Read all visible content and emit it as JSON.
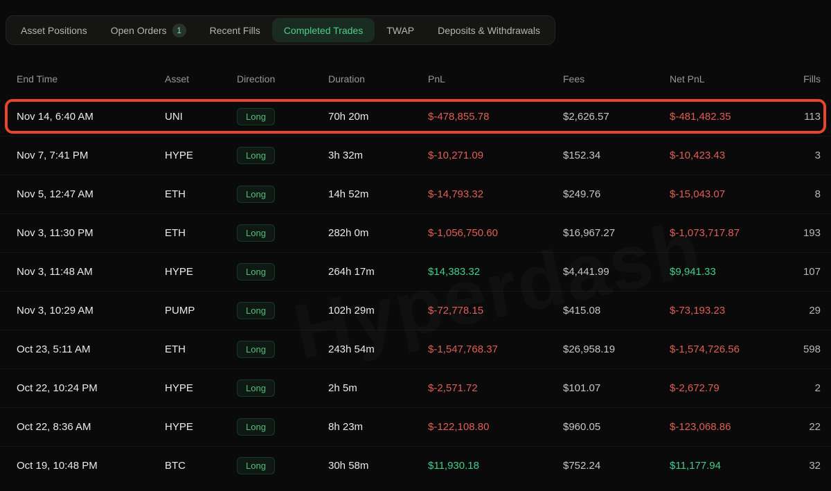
{
  "theme": {
    "background": "#0a0a0a",
    "accent_green": "#4dd08b",
    "profit_green": "#3ecf8c",
    "loss_red": "#e25d55",
    "neutral_text": "#c8c6c3",
    "highlight_border": "#e8452c",
    "long_badge_green": "#57bb7c"
  },
  "tabs": {
    "items": [
      {
        "label": "Asset Positions"
      },
      {
        "label": "Open Orders",
        "badge": "1"
      },
      {
        "label": "Recent Fills"
      },
      {
        "label": "Completed Trades",
        "active": true
      },
      {
        "label": "TWAP"
      },
      {
        "label": "Deposits & Withdrawals"
      }
    ]
  },
  "table": {
    "columns": [
      "End Time",
      "Asset",
      "Direction",
      "Duration",
      "PnL",
      "Fees",
      "Net PnL",
      "Fills"
    ],
    "rows": [
      {
        "end_time": "Nov 14, 6:40 AM",
        "asset": "UNI",
        "direction": "Long",
        "duration": "70h 20m",
        "pnl": "$-478,855.78",
        "pnl_sign": "negative",
        "fees": "$2,626.57",
        "net_pnl": "$-481,482.35",
        "net_pnl_sign": "negative",
        "fills": "113",
        "highlighted": true
      },
      {
        "end_time": "Nov 7, 7:41 PM",
        "asset": "HYPE",
        "direction": "Long",
        "duration": "3h 32m",
        "pnl": "$-10,271.09",
        "pnl_sign": "negative",
        "fees": "$152.34",
        "net_pnl": "$-10,423.43",
        "net_pnl_sign": "negative",
        "fills": "3"
      },
      {
        "end_time": "Nov 5, 12:47 AM",
        "asset": "ETH",
        "direction": "Long",
        "duration": "14h 52m",
        "pnl": "$-14,793.32",
        "pnl_sign": "negative",
        "fees": "$249.76",
        "net_pnl": "$-15,043.07",
        "net_pnl_sign": "negative",
        "fills": "8"
      },
      {
        "end_time": "Nov 3, 11:30 PM",
        "asset": "ETH",
        "direction": "Long",
        "duration": "282h 0m",
        "pnl": "$-1,056,750.60",
        "pnl_sign": "negative",
        "fees": "$16,967.27",
        "net_pnl": "$-1,073,717.87",
        "net_pnl_sign": "negative",
        "fills": "193"
      },
      {
        "end_time": "Nov 3, 11:48 AM",
        "asset": "HYPE",
        "direction": "Long",
        "duration": "264h 17m",
        "pnl": "$14,383.32",
        "pnl_sign": "positive",
        "fees": "$4,441.99",
        "net_pnl": "$9,941.33",
        "net_pnl_sign": "positive",
        "fills": "107"
      },
      {
        "end_time": "Nov 3, 10:29 AM",
        "asset": "PUMP",
        "direction": "Long",
        "duration": "102h 29m",
        "pnl": "$-72,778.15",
        "pnl_sign": "negative",
        "fees": "$415.08",
        "net_pnl": "$-73,193.23",
        "net_pnl_sign": "negative",
        "fills": "29"
      },
      {
        "end_time": "Oct 23, 5:11 AM",
        "asset": "ETH",
        "direction": "Long",
        "duration": "243h 54m",
        "pnl": "$-1,547,768.37",
        "pnl_sign": "negative",
        "fees": "$26,958.19",
        "net_pnl": "$-1,574,726.56",
        "net_pnl_sign": "negative",
        "fills": "598"
      },
      {
        "end_time": "Oct 22, 10:24 PM",
        "asset": "HYPE",
        "direction": "Long",
        "duration": "2h 5m",
        "pnl": "$-2,571.72",
        "pnl_sign": "negative",
        "fees": "$101.07",
        "net_pnl": "$-2,672.79",
        "net_pnl_sign": "negative",
        "fills": "2"
      },
      {
        "end_time": "Oct 22, 8:36 AM",
        "asset": "HYPE",
        "direction": "Long",
        "duration": "8h 23m",
        "pnl": "$-122,108.80",
        "pnl_sign": "negative",
        "fees": "$960.05",
        "net_pnl": "$-123,068.86",
        "net_pnl_sign": "negative",
        "fills": "22"
      },
      {
        "end_time": "Oct 19, 10:48 PM",
        "asset": "BTC",
        "direction": "Long",
        "duration": "30h 58m",
        "pnl": "$11,930.18",
        "pnl_sign": "positive",
        "fees": "$752.24",
        "net_pnl": "$11,177.94",
        "net_pnl_sign": "positive",
        "fills": "32"
      }
    ]
  },
  "watermark": {
    "text": "Hyperdash"
  }
}
